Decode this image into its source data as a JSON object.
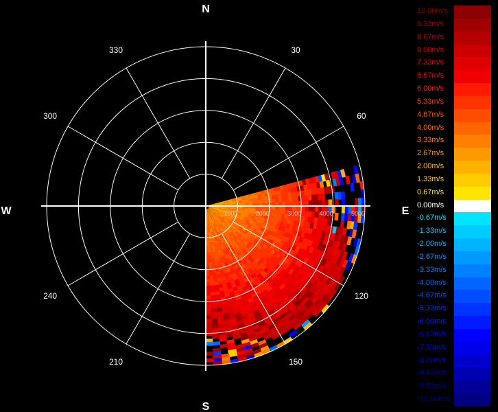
{
  "chart_data": {
    "type": "polar-radar-velocity",
    "title": "",
    "cardinals": {
      "north": "N",
      "south": "S",
      "east": "E",
      "west": "W"
    },
    "azimuth_labels": [
      {
        "deg": 30,
        "label": "30"
      },
      {
        "deg": 60,
        "label": "60"
      },
      {
        "deg": 120,
        "label": "120"
      },
      {
        "deg": 150,
        "label": "150"
      },
      {
        "deg": 210,
        "label": "210"
      },
      {
        "deg": 240,
        "label": "240"
      },
      {
        "deg": 300,
        "label": "300"
      },
      {
        "deg": 330,
        "label": "330"
      }
    ],
    "range_rings": [
      1000,
      2000,
      3000,
      4000,
      5000
    ],
    "range_labels": [
      "1000",
      "2000",
      "3000",
      "4000",
      "5000"
    ],
    "max_range": 5000,
    "sector": {
      "start_deg": 75,
      "end_deg": 180
    },
    "colorbar": [
      {
        "label": "10.00m/s",
        "color": "#8b0000"
      },
      {
        "label": "9.33m/s",
        "color": "#a00000"
      },
      {
        "label": "8.67m/s",
        "color": "#b50000"
      },
      {
        "label": "8.00m/s",
        "color": "#cc0000"
      },
      {
        "label": "7.33m/s",
        "color": "#e00000"
      },
      {
        "label": "6.67m/s",
        "color": "#f00000"
      },
      {
        "label": "6.00m/s",
        "color": "#ff1a00"
      },
      {
        "label": "5.33m/s",
        "color": "#ff3300"
      },
      {
        "label": "4.67m/s",
        "color": "#ff4d00"
      },
      {
        "label": "4.00m/s",
        "color": "#ff6600"
      },
      {
        "label": "3.33m/s",
        "color": "#ff8000"
      },
      {
        "label": "2.67m/s",
        "color": "#ff9900"
      },
      {
        "label": "2.00m/s",
        "color": "#ffb300"
      },
      {
        "label": "1.33m/s",
        "color": "#ffcc00"
      },
      {
        "label": "0.67m/s",
        "color": "#ffe600"
      },
      {
        "label": "0.00m/s",
        "color": "#ffffff"
      },
      {
        "label": "-0.67m/s",
        "color": "#00e5ff"
      },
      {
        "label": "-1.33m/s",
        "color": "#00ccff"
      },
      {
        "label": "-2.00m/s",
        "color": "#00b3ff"
      },
      {
        "label": "-2.67m/s",
        "color": "#0099ff"
      },
      {
        "label": "-3.33m/s",
        "color": "#0080ff"
      },
      {
        "label": "-4.00m/s",
        "color": "#0066ff"
      },
      {
        "label": "-4.67m/s",
        "color": "#004dff"
      },
      {
        "label": "-5.33m/s",
        "color": "#0033ff"
      },
      {
        "label": "-6.00m/s",
        "color": "#001aff"
      },
      {
        "label": "-6.67m/s",
        "color": "#0000ff"
      },
      {
        "label": "-7.33m/s",
        "color": "#0000e6"
      },
      {
        "label": "-8.00m/s",
        "color": "#0000cc"
      },
      {
        "label": "-8.67m/s",
        "color": "#0000b3"
      },
      {
        "label": "-9.33m/s",
        "color": "#000099"
      },
      {
        "label": "-10.00m/s",
        "color": "#000080"
      }
    ],
    "colors": {
      "background": "#000000",
      "grid": "#ffffff"
    }
  }
}
